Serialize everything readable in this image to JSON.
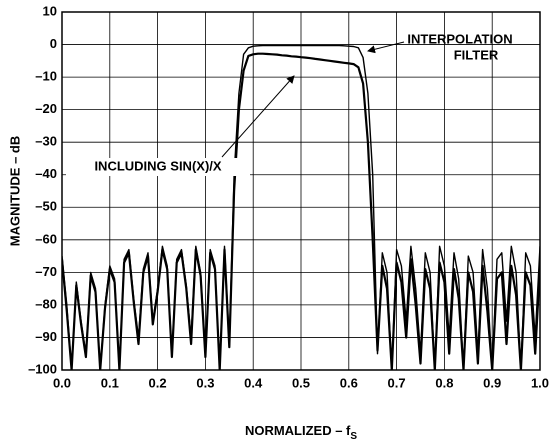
{
  "chart_data": {
    "type": "line",
    "ylabel": "MAGNITUDE – dB",
    "xlabel": {
      "text": "NORMALIZED – f",
      "subscript": "S"
    },
    "annotations": [
      {
        "lines": [
          "INTERPOLATION",
          "FILTER"
        ]
      },
      {
        "lines": [
          "INCLUDING SIN(X)/X"
        ]
      }
    ],
    "x": [
      0,
      0.01,
      0.02,
      0.03,
      0.04,
      0.05,
      0.06,
      0.07,
      0.08,
      0.09,
      0.1,
      0.11,
      0.12,
      0.13,
      0.14,
      0.15,
      0.16,
      0.17,
      0.18,
      0.19,
      0.2,
      0.21,
      0.22,
      0.23,
      0.24,
      0.25,
      0.26,
      0.27,
      0.28,
      0.29,
      0.3,
      0.31,
      0.32,
      0.33,
      0.34,
      0.35,
      0.36,
      0.37,
      0.38,
      0.39,
      0.4,
      0.41,
      0.42,
      0.43,
      0.44,
      0.45,
      0.46,
      0.47,
      0.48,
      0.49,
      0.5,
      0.51,
      0.52,
      0.53,
      0.54,
      0.55,
      0.56,
      0.57,
      0.58,
      0.59,
      0.6,
      0.61,
      0.62,
      0.63,
      0.64,
      0.65,
      0.66,
      0.67,
      0.68,
      0.69,
      0.7,
      0.71,
      0.72,
      0.73,
      0.74,
      0.75,
      0.76,
      0.77,
      0.78,
      0.79,
      0.8,
      0.81,
      0.82,
      0.83,
      0.84,
      0.85,
      0.86,
      0.87,
      0.88,
      0.89,
      0.9,
      0.91,
      0.92,
      0.93,
      0.94,
      0.95,
      0.96,
      0.97,
      0.98,
      0.99,
      1
    ],
    "series": [
      {
        "color": "#000000",
        "values": [
          -65,
          -80,
          -100,
          -73,
          -85,
          -95,
          -70,
          -75,
          -100,
          -80,
          -68,
          -72,
          -100,
          -66,
          -63,
          -78,
          -90,
          -69,
          -64,
          -85,
          -75,
          -62,
          -68,
          -95,
          -66,
          -63,
          -74,
          -90,
          -62,
          -70,
          -95,
          -63,
          -68,
          -100,
          -62,
          -92,
          -40,
          -15,
          -3,
          -1,
          -0.5,
          -0.4,
          -0.3,
          -0.3,
          -0.3,
          -0.3,
          -0.3,
          -0.3,
          -0.3,
          -0.3,
          -0.3,
          -0.3,
          -0.3,
          -0.3,
          -0.3,
          -0.3,
          -0.3,
          -0.3,
          -0.3,
          -0.4,
          -0.5,
          -0.6,
          -1,
          -4,
          -15,
          -40,
          -95,
          -64,
          -70,
          -100,
          -63,
          -68,
          -85,
          -62,
          -75,
          -95,
          -64,
          -70,
          -100,
          -62,
          -68,
          -90,
          -64,
          -72,
          -100,
          -65,
          -70,
          -95,
          -63,
          -75,
          -100,
          -66,
          -64,
          -85,
          -62,
          -70,
          -100,
          -64,
          -68,
          -90,
          -62
        ]
      },
      {
        "color": "#000000",
        "values": [
          -66,
          -82,
          -100,
          -74,
          -86,
          -96,
          -71,
          -76,
          -100,
          -81,
          -69,
          -73,
          -100,
          -67,
          -64,
          -79,
          -92,
          -70,
          -65,
          -86,
          -76,
          -63,
          -69,
          -96,
          -67,
          -64,
          -75,
          -92,
          -63,
          -71,
          -96,
          -64,
          -69,
          -100,
          -63,
          -93,
          -45,
          -20,
          -8,
          -3.5,
          -3,
          -2.8,
          -2.8,
          -2.9,
          -3,
          -3.1,
          -3.3,
          -3.4,
          -3.6,
          -3.7,
          -3.9,
          -4,
          -4.2,
          -4.4,
          -4.6,
          -4.8,
          -5,
          -5.2,
          -5.4,
          -5.6,
          -5.8,
          -6,
          -7,
          -12,
          -30,
          -60,
          -94,
          -68,
          -75,
          -100,
          -67,
          -73,
          -90,
          -66,
          -80,
          -98,
          -69,
          -75,
          -100,
          -67,
          -73,
          -95,
          -69,
          -78,
          -100,
          -70,
          -76,
          -98,
          -68,
          -82,
          -100,
          -72,
          -70,
          -92,
          -68,
          -77,
          -100,
          -70,
          -74,
          -95,
          -68
        ]
      }
    ],
    "xlim": [
      0,
      1
    ],
    "ylim": [
      -100,
      10
    ],
    "xticks": [
      {
        "value": 0,
        "label": "0.0"
      },
      0.1,
      0.2,
      0.3,
      0.4,
      0.5,
      0.6,
      0.7,
      0.8,
      0.9,
      {
        "value": 1,
        "label": "1.0"
      }
    ],
    "yticks": [
      10,
      0,
      {
        "value": -10,
        "label": "–10"
      },
      {
        "value": -20,
        "label": "–20"
      },
      {
        "value": -30,
        "label": "–30"
      },
      {
        "value": -40,
        "label": "–40"
      },
      {
        "value": -50,
        "label": "–50"
      },
      {
        "value": -60,
        "label": "–60"
      },
      {
        "value": -70,
        "label": "–70"
      },
      {
        "value": -80,
        "label": "–80"
      },
      {
        "value": -90,
        "label": "–90"
      },
      {
        "value": -100,
        "label": "–100"
      }
    ],
    "grid": true
  }
}
